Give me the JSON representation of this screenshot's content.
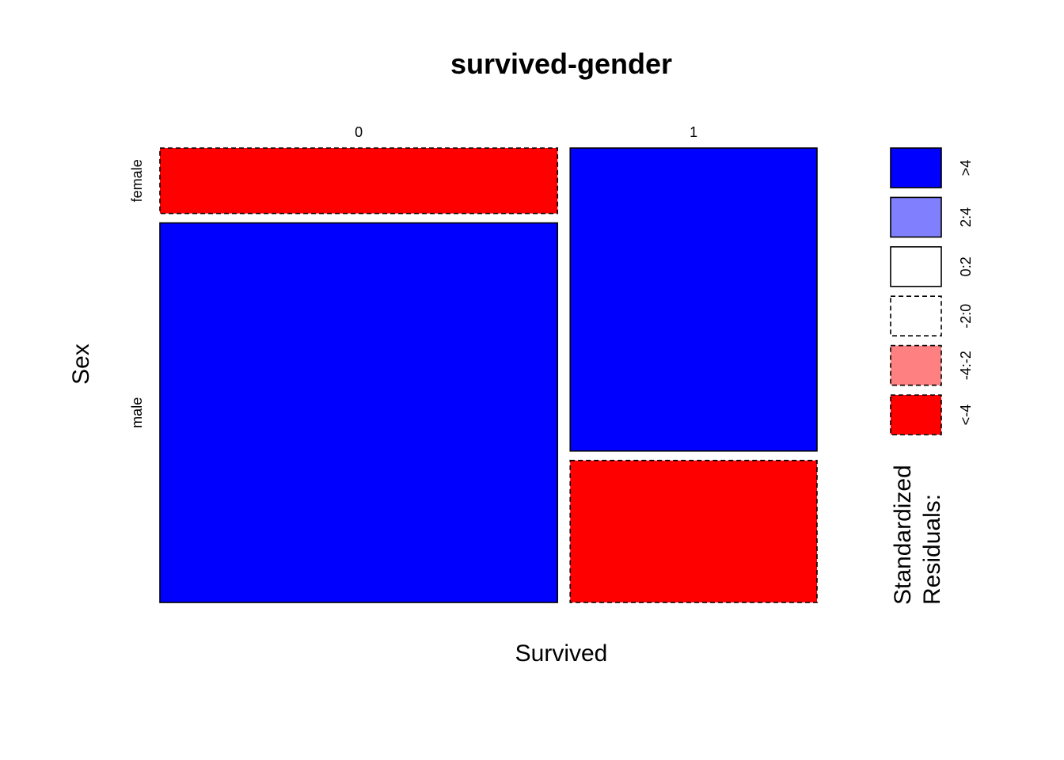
{
  "chart_data": {
    "type": "mosaic",
    "title": "survived-gender",
    "xlabel": "Survived",
    "ylabel": "Sex",
    "x_categories": [
      "0",
      "1"
    ],
    "y_categories": [
      "female",
      "male"
    ],
    "column_proportions": [
      0.617,
      0.383
    ],
    "cells": [
      {
        "x": "0",
        "y": "female",
        "share_within_column": 0.147,
        "residual_class": "<-4"
      },
      {
        "x": "0",
        "y": "male",
        "share_within_column": 0.853,
        "residual_class": ">4"
      },
      {
        "x": "1",
        "y": "female",
        "share_within_column": 0.681,
        "residual_class": ">4"
      },
      {
        "x": "1",
        "y": "male",
        "share_within_column": 0.319,
        "residual_class": "<-4"
      }
    ],
    "legend": {
      "title_lines": [
        "Standardized",
        "Residuals:"
      ],
      "position": "right",
      "entries": [
        {
          "label": ">4",
          "fill": "#0000ff",
          "dashed": false
        },
        {
          "label": "2:4",
          "fill": "#8080ff",
          "dashed": false
        },
        {
          "label": "0:2",
          "fill": "#ffffff",
          "dashed": false
        },
        {
          "label": "-2:0",
          "fill": "#ffffff",
          "dashed": true
        },
        {
          "label": "-4:-2",
          "fill": "#ff8080",
          "dashed": true
        },
        {
          "label": "<-4",
          "fill": "#ff0000",
          "dashed": true
        }
      ]
    }
  }
}
